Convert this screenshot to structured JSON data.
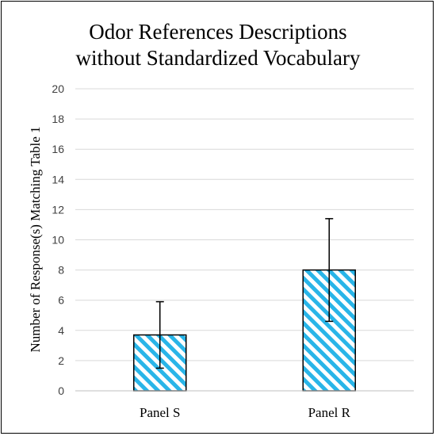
{
  "chart_data": {
    "type": "bar",
    "title_lines": [
      "Odor References Descriptions",
      "without Standardized Vocabulary"
    ],
    "ylabel": "Number of Response(s) Matching Table 1",
    "xlabel": "",
    "categories": [
      "Panel S",
      "Panel R"
    ],
    "values": [
      3.7,
      8.0
    ],
    "error_bars": [
      {
        "low": 1.5,
        "high": 5.9
      },
      {
        "low": 4.6,
        "high": 11.4
      }
    ],
    "ylim": [
      0,
      20
    ],
    "yticks": [
      "0",
      "2",
      "4",
      "6",
      "8",
      "10",
      "12",
      "14",
      "16",
      "18",
      "20"
    ],
    "grid": true,
    "bar_fill": "hatched",
    "colors": {
      "bar_hatch": "#29b5e8",
      "bar_edge": "#000000",
      "grid": "#d9d9d9",
      "axis": "#bfbfbf",
      "error_bar": "#000000"
    }
  }
}
